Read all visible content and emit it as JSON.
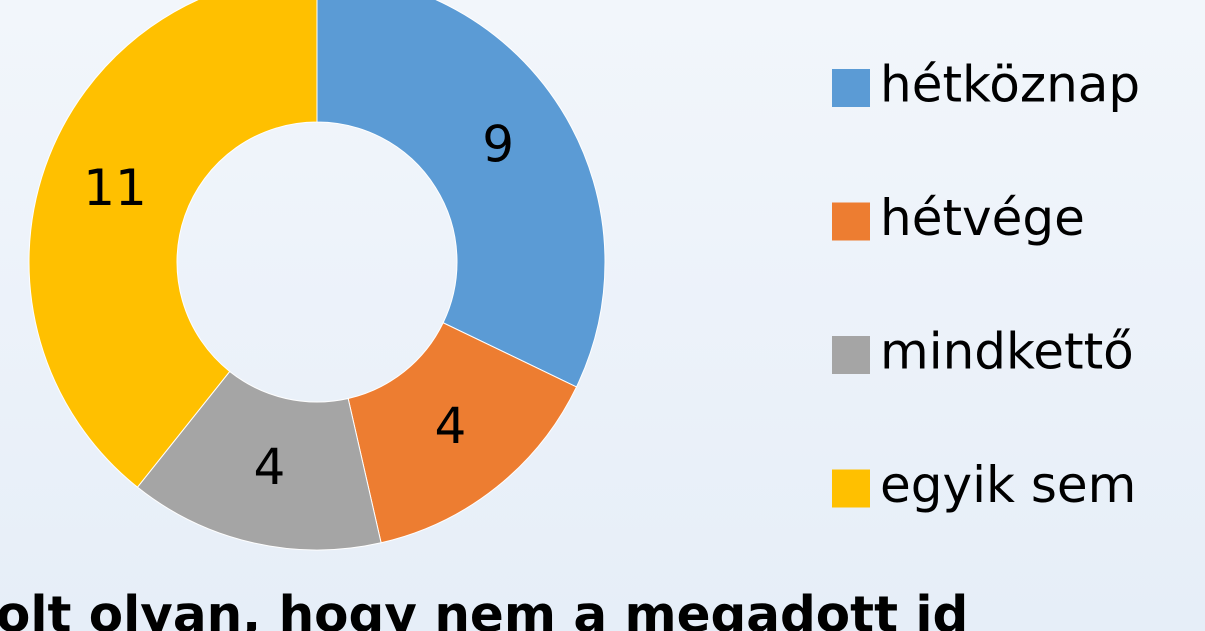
{
  "chart_data": {
    "type": "donut",
    "title": "Volt olyan, hogy nem a megadott id",
    "categories": [
      "hétköznap",
      "hétvége",
      "mindkettő",
      "egyik sem"
    ],
    "values": [
      9,
      4,
      4,
      11
    ],
    "colors": [
      "#5b9bd5",
      "#ed7d31",
      "#a5a5a5",
      "#ffc000"
    ],
    "legend": "right"
  }
}
